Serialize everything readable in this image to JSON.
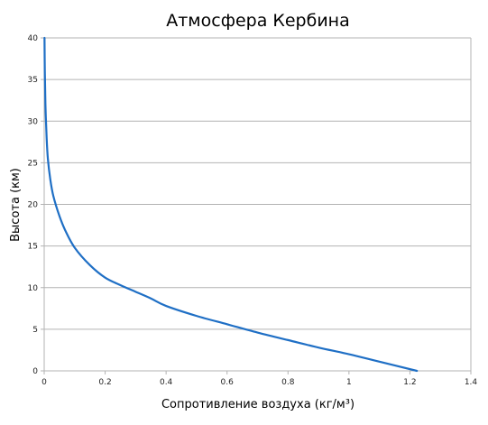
{
  "chart_data": {
    "type": "line",
    "title": "Атмосфера Кербина",
    "xlabel": "Сопротивление воздуха (кг/м³)",
    "ylabel": "Высота (км)",
    "xlim": [
      0,
      1.4
    ],
    "ylim": [
      0,
      40
    ],
    "x_ticks": [
      "0",
      "0.2",
      "0.4",
      "0.6",
      "0.8",
      "1",
      "1.2",
      "1.4"
    ],
    "y_ticks": [
      "0",
      "5",
      "10",
      "15",
      "20",
      "25",
      "30",
      "35",
      "40"
    ],
    "grid": true,
    "legend": "none",
    "series": [
      {
        "color": "#1f6fc5",
        "x": [
          1.223,
          1.1,
          1.0,
          0.9,
          0.8,
          0.7,
          0.6,
          0.5,
          0.4,
          0.35,
          0.3,
          0.25,
          0.2,
          0.15,
          0.1,
          0.07,
          0.05,
          0.03,
          0.02,
          0.012,
          0.008,
          0.004,
          0.002,
          0.001
        ],
        "y": [
          0,
          1.1,
          2.0,
          2.8,
          3.7,
          4.6,
          5.6,
          6.6,
          7.8,
          8.7,
          9.5,
          10.3,
          11.2,
          12.7,
          14.8,
          16.8,
          18.6,
          21.0,
          23.0,
          25.5,
          28.0,
          32.0,
          36.0,
          40.0
        ]
      }
    ]
  }
}
